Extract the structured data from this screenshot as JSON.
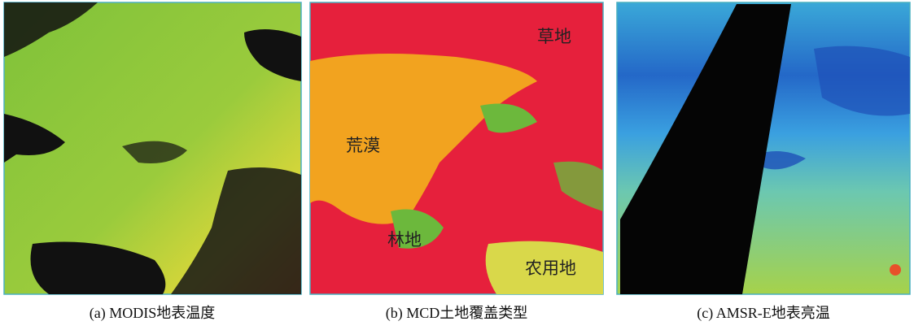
{
  "panels": [
    {
      "caption": "(a) MODIS地表温度"
    },
    {
      "caption": "(b) MCD土地覆盖类型",
      "labels": [
        "草地",
        "荒漠",
        "林地",
        "农用地"
      ]
    },
    {
      "caption": "(c) AMSR-E地表亮温"
    }
  ]
}
